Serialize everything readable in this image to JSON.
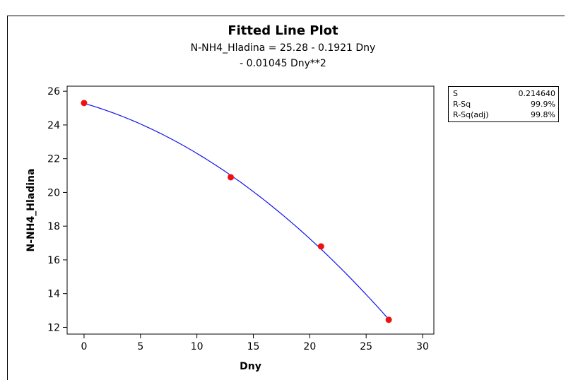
{
  "chart_data": {
    "type": "scatter",
    "title": "Fitted Line Plot",
    "equation_line1": "N-NH4_Hladina =  25.28 - 0.1921 Dny",
    "equation_line2": "- 0.01045 Dny**2",
    "xlabel": "Dny",
    "ylabel": "N-NH4_Hladina",
    "xlim": [
      -1.5,
      31
    ],
    "ylim": [
      11.6,
      26.3
    ],
    "xticks": [
      0,
      5,
      10,
      15,
      20,
      25,
      30
    ],
    "yticks": [
      12,
      14,
      16,
      18,
      20,
      22,
      24,
      26
    ],
    "points": {
      "x": [
        0,
        13,
        21,
        27
      ],
      "y": [
        25.3,
        20.9,
        16.8,
        12.45
      ]
    },
    "fit": {
      "intercept": 25.28,
      "b1": -0.1921,
      "b2": -0.01045,
      "x_range": [
        0,
        27
      ]
    },
    "colors": {
      "points": "#ee1111",
      "line": "#1111ee"
    },
    "stats": [
      {
        "label": "S",
        "value": "0.214640"
      },
      {
        "label": "R-Sq",
        "value": "99.9%"
      },
      {
        "label": "R-Sq(adj)",
        "value": "99.8%"
      }
    ]
  }
}
